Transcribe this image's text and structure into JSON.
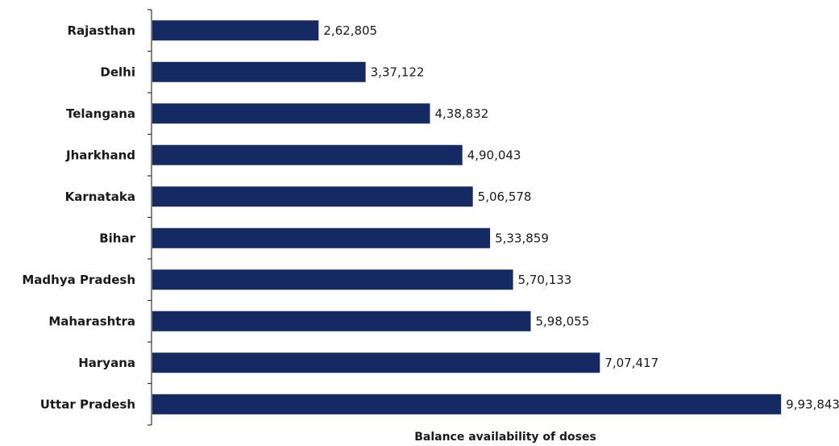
{
  "chart_data": {
    "type": "bar",
    "orientation": "horizontal",
    "categories": [
      "Rajasthan",
      "Delhi",
      "Telangana",
      "Jharkhand",
      "Karnataka",
      "Bihar",
      "Madhya Pradesh",
      "Maharashtra",
      "Haryana",
      "Uttar Pradesh"
    ],
    "values": [
      262805,
      337122,
      438832,
      490043,
      506578,
      533859,
      570133,
      598055,
      707417,
      993843
    ],
    "value_labels": [
      "2,62,805",
      "3,37,122",
      "4,38,832",
      "4,90,043",
      "5,06,578",
      "5,33,859",
      "5,70,133",
      "5,98,055",
      "7,07,417",
      "9,93,843"
    ],
    "xlabel": "Balance availability of doses",
    "ylabel": "",
    "title": "",
    "xlim": [
      0,
      1000000
    ],
    "grid": false,
    "legend": "none",
    "bar_color": "#152a63"
  }
}
